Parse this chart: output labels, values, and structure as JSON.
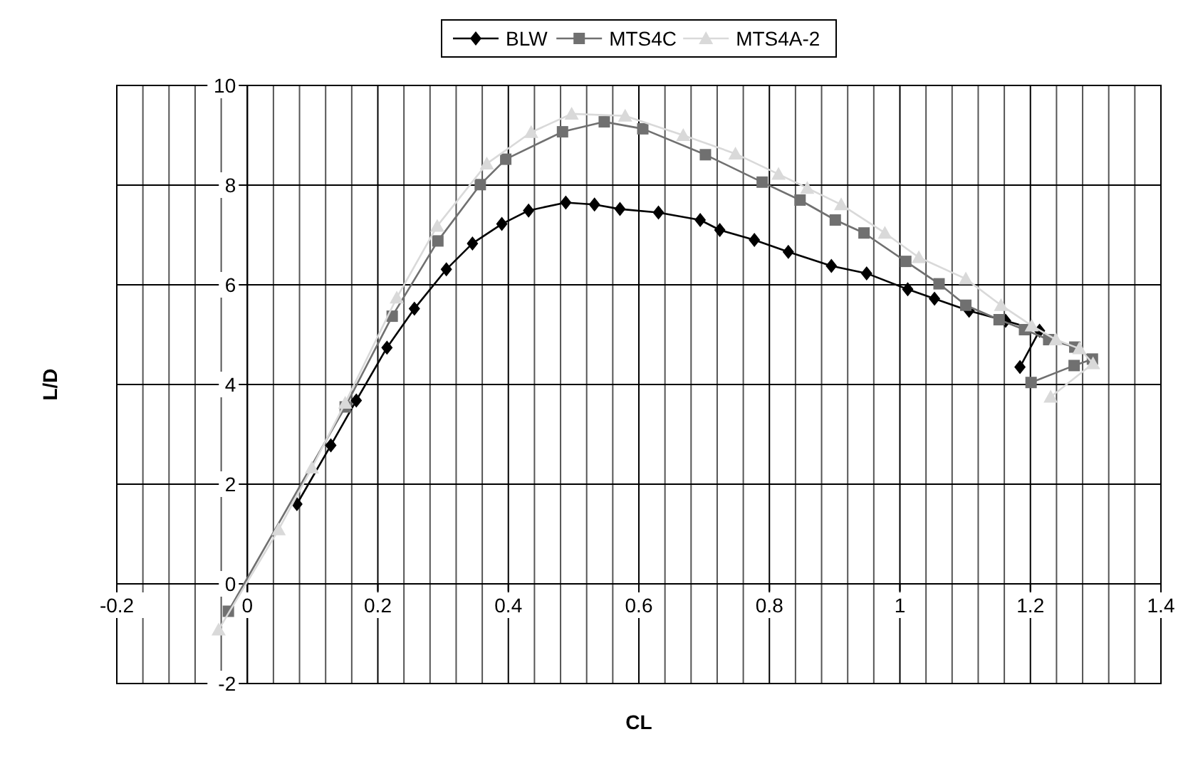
{
  "chart_data": {
    "type": "line",
    "xlabel": "CL",
    "ylabel": "L/D",
    "xlim": [
      -0.2,
      1.4
    ],
    "ylim": [
      -2,
      10
    ],
    "xticks": [
      -0.2,
      {
        "value": -0.16,
        "label": null
      },
      {
        "value": -0.12,
        "label": null
      },
      {
        "value": -0.08,
        "label": null
      },
      {
        "value": -0.04,
        "label": null
      },
      0,
      {
        "value": 0.04,
        "label": null
      },
      {
        "value": 0.08,
        "label": null
      },
      {
        "value": 0.12,
        "label": null
      },
      {
        "value": 0.16,
        "label": null
      },
      0.2,
      {
        "value": 0.24,
        "label": null
      },
      {
        "value": 0.28,
        "label": null
      },
      {
        "value": 0.32,
        "label": null
      },
      {
        "value": 0.36,
        "label": null
      },
      0.4,
      {
        "value": 0.44,
        "label": null
      },
      {
        "value": 0.48,
        "label": null
      },
      {
        "value": 0.52,
        "label": null
      },
      {
        "value": 0.56,
        "label": null
      },
      0.6,
      {
        "value": 0.64,
        "label": null
      },
      {
        "value": 0.68,
        "label": null
      },
      {
        "value": 0.72,
        "label": null
      },
      {
        "value": 0.76,
        "label": null
      },
      0.8,
      {
        "value": 0.84,
        "label": null
      },
      {
        "value": 0.88,
        "label": null
      },
      {
        "value": 0.92,
        "label": null
      },
      {
        "value": 0.96,
        "label": null
      },
      1,
      {
        "value": 1.04,
        "label": null
      },
      {
        "value": 1.08,
        "label": null
      },
      {
        "value": 1.12,
        "label": null
      },
      {
        "value": 1.16,
        "label": null
      },
      1.2,
      {
        "value": 1.24,
        "label": null
      },
      {
        "value": 1.28,
        "label": null
      },
      {
        "value": 1.32,
        "label": null
      },
      {
        "value": 1.36,
        "label": null
      },
      1.4
    ],
    "yticks": [
      -2,
      0,
      2,
      4,
      6,
      8,
      10
    ],
    "grid": true,
    "legend": "top",
    "line_style": "solid",
    "series": [
      {
        "name": "BLW",
        "color": "#000000",
        "marker": "diamond",
        "x": [
          0.076,
          0.128,
          0.167,
          0.214,
          0.256,
          0.305,
          0.345,
          0.39,
          0.431,
          0.488,
          0.532,
          0.571,
          0.63,
          0.694,
          0.724,
          0.777,
          0.829,
          0.895,
          0.949,
          1.012,
          1.053,
          1.106,
          1.162,
          1.214,
          1.184
        ],
        "values": [
          1.6,
          2.78,
          3.68,
          4.74,
          5.52,
          6.31,
          6.83,
          7.22,
          7.49,
          7.65,
          7.61,
          7.52,
          7.45,
          7.3,
          7.1,
          6.9,
          6.66,
          6.38,
          6.23,
          5.91,
          5.72,
          5.48,
          5.28,
          5.08,
          4.35
        ]
      },
      {
        "name": "MTS4C",
        "color": "#707070",
        "marker": "square",
        "x": [
          -0.029,
          0.15,
          0.222,
          0.292,
          0.357,
          0.396,
          0.483,
          0.547,
          0.606,
          0.702,
          0.789,
          0.847,
          0.901,
          0.945,
          1.009,
          1.06,
          1.101,
          1.152,
          1.191,
          1.228,
          1.268,
          1.295,
          1.267,
          1.201
        ],
        "values": [
          -0.55,
          3.55,
          5.37,
          6.88,
          8.01,
          8.52,
          9.07,
          9.27,
          9.13,
          8.61,
          8.06,
          7.7,
          7.3,
          7.04,
          6.47,
          6.02,
          5.59,
          5.3,
          5.1,
          4.9,
          4.75,
          4.51,
          4.38,
          4.04
        ]
      },
      {
        "name": "MTS4A-2",
        "color": "#d9d9d9",
        "marker": "triangle",
        "x": [
          -0.044,
          0.048,
          0.099,
          0.15,
          0.229,
          0.291,
          0.367,
          0.435,
          0.497,
          0.579,
          0.668,
          0.748,
          0.814,
          0.858,
          0.91,
          0.977,
          1.029,
          1.101,
          1.155,
          1.202,
          1.239,
          1.275,
          1.296,
          1.231
        ],
        "values": [
          -0.92,
          1.09,
          2.33,
          3.63,
          5.74,
          7.18,
          8.43,
          9.06,
          9.43,
          9.39,
          9.0,
          8.63,
          8.22,
          7.94,
          7.61,
          7.04,
          6.55,
          6.12,
          5.59,
          5.18,
          4.9,
          4.72,
          4.42,
          3.75
        ]
      }
    ]
  }
}
